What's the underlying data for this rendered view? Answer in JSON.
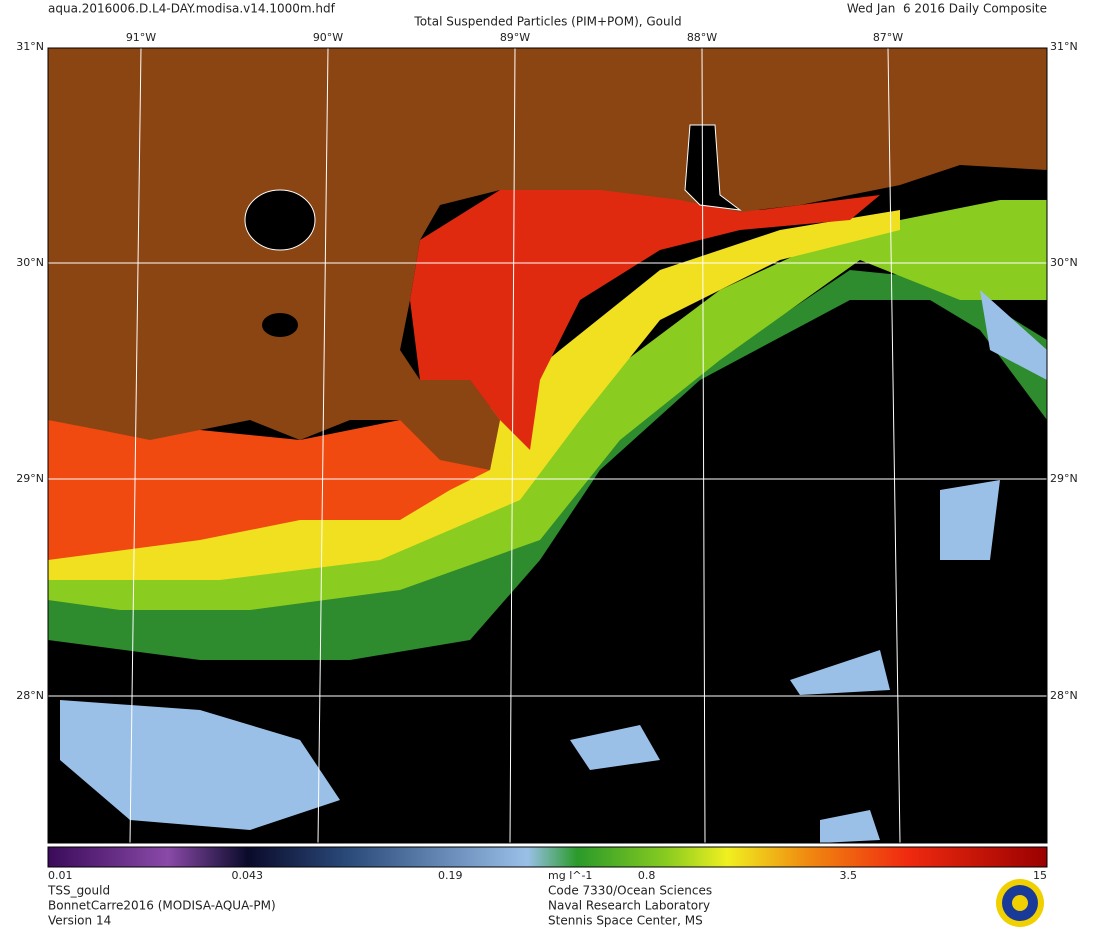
{
  "header": {
    "file": "aqua.2016006.D.L4-DAY.modisa.v14.1000m.hdf",
    "title": "Total Suspended Particles (PIM+POM), Gould",
    "date": "Wed Jan  6 2016 Daily Composite"
  },
  "map": {
    "lat_labels": [
      "31°N",
      "30°N",
      "29°N",
      "28°N"
    ],
    "lon_labels": [
      "91°W",
      "90°W",
      "89°W",
      "88°W",
      "87°W"
    ]
  },
  "colorbar": {
    "range": [
      0.01,
      15
    ],
    "log": true,
    "ticks": [
      0.01,
      0.043,
      0.19,
      0.8,
      3.5,
      15
    ],
    "unit": "mg l^-1"
  },
  "footer": {
    "left": [
      "TSS_gould",
      "BonnetCarre2016 (MODISA-AQUA-PM)",
      "Version 14"
    ],
    "right": [
      "Code 7330/Ocean Sciences",
      "Naval Research Laboratory",
      "Stennis Space Center, MS"
    ]
  }
}
